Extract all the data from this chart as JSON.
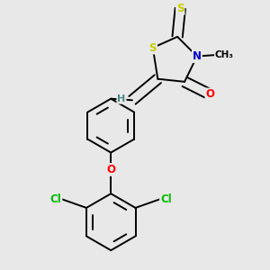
{
  "background_color": "#e8e8e8",
  "atom_colors": {
    "S": "#cccc00",
    "N": "#0000cc",
    "O": "#ff0000",
    "Cl": "#00bb00",
    "C": "#000000",
    "H": "#4a8888"
  },
  "bond_color": "#000000",
  "figsize": [
    3.0,
    3.0
  ],
  "dpi": 100
}
